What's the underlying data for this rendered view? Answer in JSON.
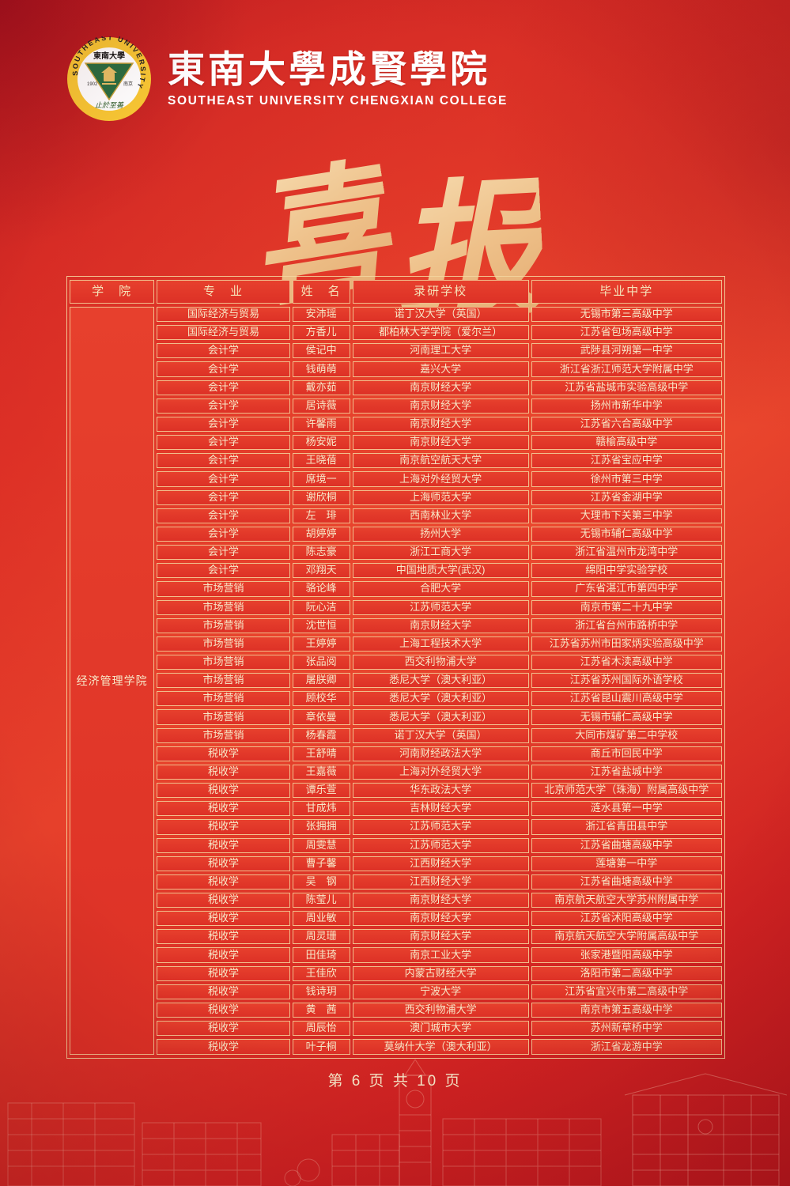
{
  "header": {
    "college_name_cn": "東南大學成賢學院",
    "college_name_en": "SOUTHEAST UNIVERSITY CHENGXIAN COLLEGE",
    "logo": {
      "ring_text": "SOUTHEAST UNIVERSITY",
      "seal_cn": "東南大學",
      "year": "1902",
      "city": "南京",
      "motto": "止於至善"
    }
  },
  "title": {
    "char1": "喜",
    "char2": "报"
  },
  "table": {
    "headers": [
      "学　院",
      "专　业",
      "姓　名",
      "录研学校",
      "毕业中学"
    ],
    "college": "经济管理学院",
    "rows": [
      {
        "major": "国际经济与贸易",
        "name": "安沛瑶",
        "grad_school": "诺丁汉大学（英国）",
        "high_school": "无锡市第三高级中学"
      },
      {
        "major": "国际经济与贸易",
        "name": "方香儿",
        "grad_school": "都柏林大学学院（爱尔兰）",
        "high_school": "江苏省包场高级中学"
      },
      {
        "major": "会计学",
        "name": "侯记中",
        "grad_school": "河南理工大学",
        "high_school": "武陟县河朔第一中学"
      },
      {
        "major": "会计学",
        "name": "钱萌萌",
        "grad_school": "嘉兴大学",
        "high_school": "浙江省浙江师范大学附属中学"
      },
      {
        "major": "会计学",
        "name": "戴亦茹",
        "grad_school": "南京财经大学",
        "high_school": "江苏省盐城市实验高级中学"
      },
      {
        "major": "会计学",
        "name": "居诗薇",
        "grad_school": "南京财经大学",
        "high_school": "扬州市新华中学"
      },
      {
        "major": "会计学",
        "name": "许馨雨",
        "grad_school": "南京财经大学",
        "high_school": "江苏省六合高级中学"
      },
      {
        "major": "会计学",
        "name": "杨安妮",
        "grad_school": "南京财经大学",
        "high_school": "赣榆高级中学"
      },
      {
        "major": "会计学",
        "name": "王晓蓓",
        "grad_school": "南京航空航天大学",
        "high_school": "江苏省宝应中学"
      },
      {
        "major": "会计学",
        "name": "席境一",
        "grad_school": "上海对外经贸大学",
        "high_school": "徐州市第三中学"
      },
      {
        "major": "会计学",
        "name": "谢欣桐",
        "grad_school": "上海师范大学",
        "high_school": "江苏省金湖中学"
      },
      {
        "major": "会计学",
        "name": "左　琲",
        "grad_school": "西南林业大学",
        "high_school": "大理市下关第三中学"
      },
      {
        "major": "会计学",
        "name": "胡婷婷",
        "grad_school": "扬州大学",
        "high_school": "无锡市辅仁高级中学"
      },
      {
        "major": "会计学",
        "name": "陈志豪",
        "grad_school": "浙江工商大学",
        "high_school": "浙江省温州市龙湾中学"
      },
      {
        "major": "会计学",
        "name": "邓翔天",
        "grad_school": "中国地质大学(武汉)",
        "high_school": "绵阳中学实验学校"
      },
      {
        "major": "市场营销",
        "name": "骆论峰",
        "grad_school": "合肥大学",
        "high_school": "广东省湛江市第四中学"
      },
      {
        "major": "市场营销",
        "name": "阮心洁",
        "grad_school": "江苏师范大学",
        "high_school": "南京市第二十九中学"
      },
      {
        "major": "市场营销",
        "name": "沈世恒",
        "grad_school": "南京财经大学",
        "high_school": "浙江省台州市路桥中学"
      },
      {
        "major": "市场营销",
        "name": "王婷婷",
        "grad_school": "上海工程技术大学",
        "high_school": "江苏省苏州市田家炳实验高级中学"
      },
      {
        "major": "市场营销",
        "name": "张品阅",
        "grad_school": "西交利物浦大学",
        "high_school": "江苏省木渎高级中学"
      },
      {
        "major": "市场营销",
        "name": "屠朕卿",
        "grad_school": "悉尼大学（澳大利亚）",
        "high_school": "江苏省苏州国际外语学校"
      },
      {
        "major": "市场营销",
        "name": "顾校华",
        "grad_school": "悉尼大学（澳大利亚）",
        "high_school": "江苏省昆山震川高级中学"
      },
      {
        "major": "市场营销",
        "name": "章依曼",
        "grad_school": "悉尼大学（澳大利亚）",
        "high_school": "无锡市辅仁高级中学"
      },
      {
        "major": "市场营销",
        "name": "杨春霞",
        "grad_school": "诺丁汉大学（英国）",
        "high_school": "大同市煤矿第二中学校"
      },
      {
        "major": "税收学",
        "name": "王舒晴",
        "grad_school": "河南财经政法大学",
        "high_school": "商丘市回民中学"
      },
      {
        "major": "税收学",
        "name": "王嘉薇",
        "grad_school": "上海对外经贸大学",
        "high_school": "江苏省盐城中学"
      },
      {
        "major": "税收学",
        "name": "谭乐萱",
        "grad_school": "华东政法大学",
        "high_school": "北京师范大学（珠海）附属高级中学"
      },
      {
        "major": "税收学",
        "name": "甘成炜",
        "grad_school": "吉林财经大学",
        "high_school": "涟水县第一中学"
      },
      {
        "major": "税收学",
        "name": "张拥拥",
        "grad_school": "江苏师范大学",
        "high_school": "浙江省青田县中学"
      },
      {
        "major": "税收学",
        "name": "周雯慧",
        "grad_school": "江苏师范大学",
        "high_school": "江苏省曲塘高级中学"
      },
      {
        "major": "税收学",
        "name": "曹子馨",
        "grad_school": "江西财经大学",
        "high_school": "莲塘第一中学"
      },
      {
        "major": "税收学",
        "name": "吴　钢",
        "grad_school": "江西财经大学",
        "high_school": "江苏省曲塘高级中学"
      },
      {
        "major": "税收学",
        "name": "陈莹儿",
        "grad_school": "南京财经大学",
        "high_school": "南京航天航空大学苏州附属中学"
      },
      {
        "major": "税收学",
        "name": "周业敏",
        "grad_school": "南京财经大学",
        "high_school": "江苏省沭阳高级中学"
      },
      {
        "major": "税收学",
        "name": "周灵珊",
        "grad_school": "南京财经大学",
        "high_school": "南京航天航空大学附属高级中学"
      },
      {
        "major": "税收学",
        "name": "田佳琦",
        "grad_school": "南京工业大学",
        "high_school": "张家港暨阳高级中学"
      },
      {
        "major": "税收学",
        "name": "王佳欣",
        "grad_school": "内蒙古财经大学",
        "high_school": "洛阳市第二高级中学"
      },
      {
        "major": "税收学",
        "name": "钱诗玥",
        "grad_school": "宁波大学",
        "high_school": "江苏省宜兴市第二高级中学"
      },
      {
        "major": "税收学",
        "name": "黄　茜",
        "grad_school": "西交利物浦大学",
        "high_school": "南京市第五高级中学"
      },
      {
        "major": "税收学",
        "name": "周辰怡",
        "grad_school": "澳门城市大学",
        "high_school": "苏州新草桥中学"
      },
      {
        "major": "税收学",
        "name": "叶子桐",
        "grad_school": "莫纳什大学（澳大利亚）",
        "high_school": "浙江省龙游中学"
      }
    ]
  },
  "footer": {
    "page_info": "第 6 页  共 10 页"
  },
  "colors": {
    "page_red": "#d92a24",
    "cell_red": "#e23b29",
    "border_gold": "#f4d69e",
    "text_cream": "#f7e9c9",
    "title_gold": "#eec089",
    "logo_yellow": "#f8c734",
    "logo_green": "#2a6e41"
  }
}
